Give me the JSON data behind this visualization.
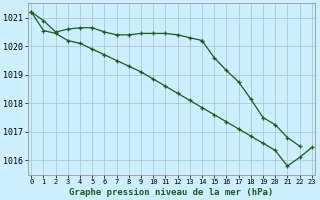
{
  "title": "Graphe pression niveau de la mer (hPa)",
  "bg_color": "#cceeff",
  "grid_color": "#aacccc",
  "line_color": "#1a5c1a",
  "hours": [
    0,
    1,
    2,
    3,
    4,
    5,
    6,
    7,
    8,
    9,
    10,
    11,
    12,
    13,
    14,
    15,
    16,
    17,
    18,
    19,
    20,
    21,
    22,
    23
  ],
  "series1": [
    1021.2,
    1020.9,
    1020.5,
    1020.6,
    1020.65,
    1020.65,
    1020.5,
    1020.4,
    1020.4,
    1020.45,
    1020.45,
    1020.45,
    1020.4,
    1020.3,
    1020.2,
    null,
    null,
    null,
    null,
    null,
    null,
    null,
    null,
    null
  ],
  "series2": [
    null,
    null,
    null,
    null,
    null,
    null,
    null,
    null,
    null,
    null,
    null,
    null,
    null,
    null,
    1020.2,
    1019.6,
    1019.15,
    1018.75,
    1018.15,
    1017.5,
    1017.25,
    1016.8,
    1016.5,
    null
  ],
  "series3": [
    1021.2,
    1020.55,
    1020.45,
    1020.2,
    1020.1,
    1019.9,
    1019.7,
    1019.5,
    1019.3,
    1019.1,
    1018.85,
    1018.6,
    1018.35,
    1018.1,
    1017.85,
    1017.6,
    1017.35,
    1017.1,
    1016.85,
    1016.6,
    1016.35,
    1015.8,
    1016.1,
    1016.45
  ],
  "ylim": [
    1015.5,
    1021.5
  ],
  "yticks": [
    1016,
    1017,
    1018,
    1019,
    1020,
    1021
  ],
  "xticks": [
    0,
    1,
    2,
    3,
    4,
    5,
    6,
    7,
    8,
    9,
    10,
    11,
    12,
    13,
    14,
    15,
    16,
    17,
    18,
    19,
    20,
    21,
    22,
    23
  ],
  "xlim": [
    -0.3,
    23.3
  ]
}
